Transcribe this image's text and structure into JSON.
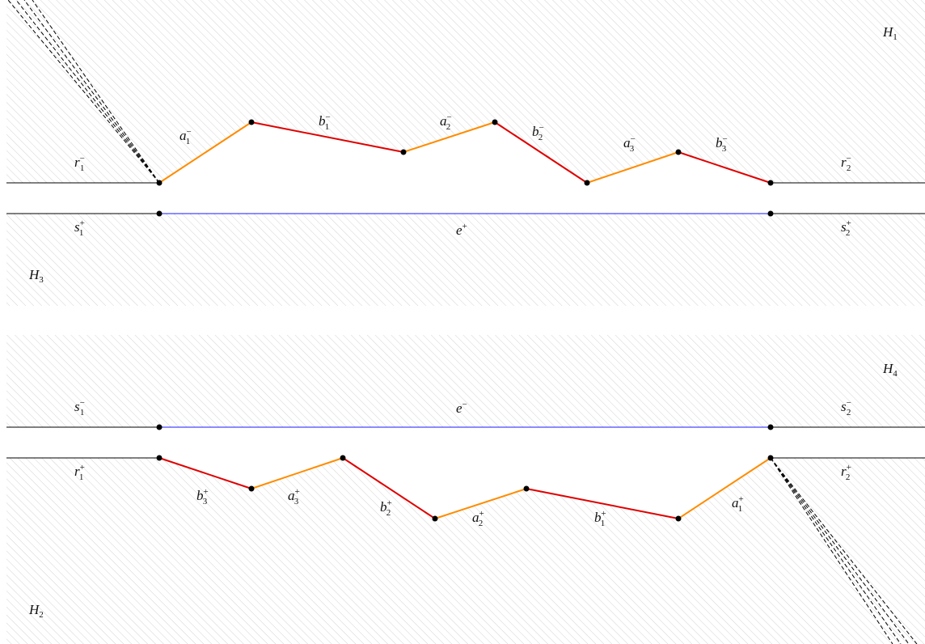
{
  "diagram": {
    "colors": {
      "hatch": "#c8c8c8",
      "boundary": "#000000",
      "segment_a": "#ff8c00",
      "segment_b": "#e00000",
      "segment_e": "#1a1aff",
      "vertex": "#000000"
    },
    "regions": {
      "h1": {
        "base": "H",
        "sub": "1"
      },
      "h2": {
        "base": "H",
        "sub": "2"
      },
      "h3": {
        "base": "H",
        "sub": "3"
      },
      "h4": {
        "base": "H",
        "sub": "4"
      }
    },
    "top_labels": {
      "r1_minus": {
        "base": "r",
        "sub": "1",
        "sup": "−"
      },
      "r2_minus": {
        "base": "r",
        "sub": "2",
        "sup": "−"
      },
      "s1_plus": {
        "base": "s",
        "sub": "1",
        "sup": "+"
      },
      "s2_plus": {
        "base": "s",
        "sub": "2",
        "sup": "+"
      },
      "e_plus": {
        "base": "e",
        "sub": "",
        "sup": "+"
      },
      "a1_minus": {
        "base": "a",
        "sub": "1",
        "sup": "−"
      },
      "b1_minus": {
        "base": "b",
        "sub": "1",
        "sup": "−"
      },
      "a2_minus": {
        "base": "a",
        "sub": "2",
        "sup": "−"
      },
      "b2_minus": {
        "base": "b",
        "sub": "2",
        "sup": "−"
      },
      "a3_minus": {
        "base": "a",
        "sub": "3",
        "sup": "−"
      },
      "b3_minus": {
        "base": "b",
        "sub": "3",
        "sup": "−"
      }
    },
    "bottom_labels": {
      "s1_minus": {
        "base": "s",
        "sub": "1",
        "sup": "−"
      },
      "s2_minus": {
        "base": "s",
        "sub": "2",
        "sup": "−"
      },
      "e_minus": {
        "base": "e",
        "sub": "",
        "sup": "−"
      },
      "r1_plus": {
        "base": "r",
        "sub": "1",
        "sup": "+"
      },
      "r2_plus": {
        "base": "r",
        "sub": "2",
        "sup": "+"
      },
      "b3_plus": {
        "base": "b",
        "sub": "3",
        "sup": "+"
      },
      "a3_plus": {
        "base": "a",
        "sub": "3",
        "sup": "+"
      },
      "b2_plus": {
        "base": "b",
        "sub": "2",
        "sup": "+"
      },
      "a2_plus": {
        "base": "a",
        "sub": "2",
        "sup": "+"
      },
      "b1_plus": {
        "base": "b",
        "sub": "1",
        "sup": "+"
      },
      "a1_plus": {
        "base": "a",
        "sub": "1",
        "sup": "+"
      }
    }
  }
}
